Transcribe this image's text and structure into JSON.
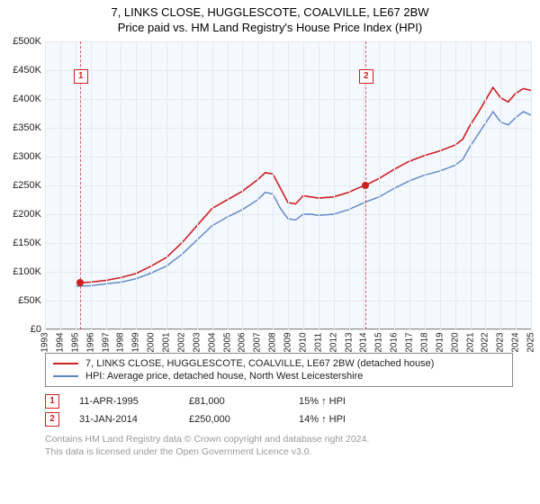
{
  "title_line1": "7, LINKS CLOSE, HUGGLESCOTE, COALVILLE, LE67 2BW",
  "title_line2": "Price paid vs. HM Land Registry's House Price Index (HPI)",
  "chart": {
    "type": "line",
    "background_color": "#f4f8ff",
    "grid_color": "#e6e8ee",
    "axis_color": "#888888",
    "x_years": [
      1993,
      1994,
      1995,
      1996,
      1997,
      1998,
      1999,
      2000,
      2001,
      2002,
      2003,
      2004,
      2005,
      2006,
      2007,
      2008,
      2009,
      2010,
      2011,
      2012,
      2013,
      2014,
      2015,
      2016,
      2017,
      2018,
      2019,
      2020,
      2021,
      2022,
      2023,
      2024,
      2025
    ],
    "xlim": [
      1993,
      2025
    ],
    "ylim": [
      0,
      500000
    ],
    "ytick_step": 50000,
    "yticks": [
      "£0",
      "£50K",
      "£100K",
      "£150K",
      "£200K",
      "£250K",
      "£300K",
      "£350K",
      "£400K",
      "£450K",
      "£500K"
    ],
    "ytick_vals": [
      0,
      50000,
      100000,
      150000,
      200000,
      250000,
      300000,
      350000,
      400000,
      450000,
      500000
    ],
    "series": [
      {
        "name": "property",
        "label": "7, LINKS CLOSE, HUGGLESCOTE, COALVILLE, LE67 2BW (detached house)",
        "color": "#cf2020",
        "width": 1.6,
        "points": [
          [
            1995.3,
            81000
          ],
          [
            1996,
            82000
          ],
          [
            1997,
            85000
          ],
          [
            1998,
            90000
          ],
          [
            1999,
            97000
          ],
          [
            2000,
            110000
          ],
          [
            2001,
            125000
          ],
          [
            2002,
            150000
          ],
          [
            2003,
            180000
          ],
          [
            2004,
            210000
          ],
          [
            2005,
            225000
          ],
          [
            2006,
            240000
          ],
          [
            2007,
            260000
          ],
          [
            2007.5,
            272000
          ],
          [
            2008,
            270000
          ],
          [
            2008.5,
            245000
          ],
          [
            2009,
            220000
          ],
          [
            2009.5,
            218000
          ],
          [
            2010,
            232000
          ],
          [
            2010.5,
            230000
          ],
          [
            2011,
            228000
          ],
          [
            2012,
            230000
          ],
          [
            2013,
            238000
          ],
          [
            2013.5,
            244000
          ],
          [
            2014.08,
            250000
          ],
          [
            2015,
            262000
          ],
          [
            2016,
            278000
          ],
          [
            2017,
            292000
          ],
          [
            2018,
            302000
          ],
          [
            2019,
            310000
          ],
          [
            2020,
            320000
          ],
          [
            2020.5,
            330000
          ],
          [
            2021,
            355000
          ],
          [
            2021.5,
            375000
          ],
          [
            2022,
            398000
          ],
          [
            2022.5,
            420000
          ],
          [
            2023,
            402000
          ],
          [
            2023.5,
            395000
          ],
          [
            2024,
            410000
          ],
          [
            2024.5,
            418000
          ],
          [
            2025,
            415000
          ]
        ]
      },
      {
        "name": "hpi",
        "label": "HPI: Average price, detached house, North West Leicestershire",
        "color": "#5a86c5",
        "width": 1.4,
        "points": [
          [
            1995,
            75000
          ],
          [
            1996,
            76000
          ],
          [
            1997,
            79000
          ],
          [
            1998,
            82000
          ],
          [
            1999,
            88000
          ],
          [
            2000,
            98000
          ],
          [
            2001,
            110000
          ],
          [
            2002,
            130000
          ],
          [
            2003,
            155000
          ],
          [
            2004,
            180000
          ],
          [
            2005,
            195000
          ],
          [
            2006,
            208000
          ],
          [
            2007,
            225000
          ],
          [
            2007.5,
            238000
          ],
          [
            2008,
            235000
          ],
          [
            2008.5,
            210000
          ],
          [
            2009,
            192000
          ],
          [
            2009.5,
            190000
          ],
          [
            2010,
            200000
          ],
          [
            2010.5,
            200000
          ],
          [
            2011,
            198000
          ],
          [
            2012,
            200000
          ],
          [
            2013,
            208000
          ],
          [
            2014,
            220000
          ],
          [
            2015,
            230000
          ],
          [
            2016,
            245000
          ],
          [
            2017,
            258000
          ],
          [
            2018,
            268000
          ],
          [
            2019,
            275000
          ],
          [
            2020,
            285000
          ],
          [
            2020.5,
            295000
          ],
          [
            2021,
            318000
          ],
          [
            2021.5,
            338000
          ],
          [
            2022,
            358000
          ],
          [
            2022.5,
            378000
          ],
          [
            2023,
            360000
          ],
          [
            2023.5,
            355000
          ],
          [
            2024,
            368000
          ],
          [
            2024.5,
            378000
          ],
          [
            2025,
            372000
          ]
        ]
      }
    ],
    "event_markers": [
      {
        "id": "1",
        "x": 1995.3,
        "y_box": 440000,
        "dot": [
          1995.3,
          81000
        ]
      },
      {
        "id": "2",
        "x": 2014.08,
        "y_box": 440000,
        "dot": [
          2014.08,
          250000
        ]
      }
    ],
    "marker_color": "#cf2020"
  },
  "legend": {
    "border_color": "#888888",
    "items": [
      {
        "color": "#cf2020",
        "label_path": "chart.series.0.label"
      },
      {
        "color": "#5a86c5",
        "label_path": "chart.series.1.label"
      }
    ]
  },
  "events": [
    {
      "id": "1",
      "date": "11-APR-1995",
      "price": "£81,000",
      "delta": "15% ↑ HPI"
    },
    {
      "id": "2",
      "date": "31-JAN-2014",
      "price": "£250,000",
      "delta": "14% ↑ HPI"
    }
  ],
  "footnote_line1": "Contains HM Land Registry data © Crown copyright and database right 2024.",
  "footnote_line2": "This data is licensed under the Open Government Licence v3.0."
}
